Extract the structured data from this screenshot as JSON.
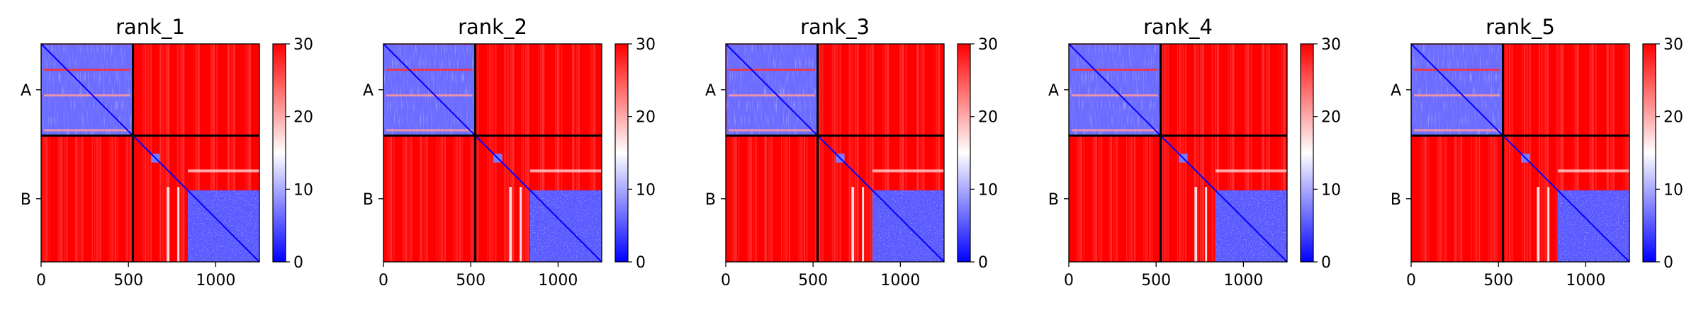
{
  "chart_data": {
    "type": "heatmap",
    "colormap": {
      "name": "bwr",
      "low": "#0000ff",
      "mid": "#ffffff",
      "high": "#ff0000"
    },
    "value_range": [
      0,
      30
    ],
    "colorbar_ticks": [
      "0",
      "10",
      "20",
      "30"
    ],
    "x_ticks": [
      {
        "value": 0,
        "label": "0"
      },
      {
        "value": 500,
        "label": "500"
      },
      {
        "value": 1000,
        "label": "1000"
      }
    ],
    "x_range": [
      0,
      1250
    ],
    "chain_boundary": 526,
    "chain_labels": [
      "A",
      "B"
    ],
    "panels": [
      {
        "title": "rank_1"
      },
      {
        "title": "rank_2"
      },
      {
        "title": "rank_3"
      },
      {
        "title": "rank_4"
      },
      {
        "title": "rank_5"
      }
    ]
  }
}
